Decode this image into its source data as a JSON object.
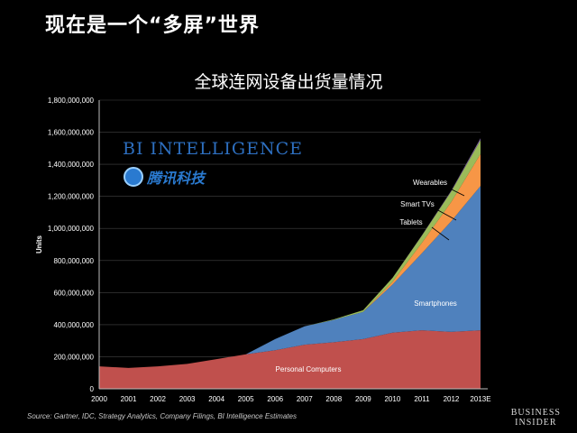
{
  "slide": {
    "title": "现在是一个“多屏”世界",
    "source": "Source: Gartner, IDC, Strategy Analytics, Company Filings, BI Intelligence Estimates",
    "publisher_line1": "BUSINESS",
    "publisher_line2": "INSIDER",
    "brand_text": "BI INTELLIGENCE",
    "logo_text": "腾讯科技"
  },
  "chart_data": {
    "type": "area",
    "stacked": true,
    "title": "全球连网设备出货量情况",
    "ylabel": "Units",
    "xlabel": "",
    "categories": [
      "2000",
      "2001",
      "2002",
      "2003",
      "2004",
      "2005",
      "2006",
      "2007",
      "2008",
      "2009",
      "2010",
      "2011",
      "2012",
      "2013E"
    ],
    "ylim": [
      0,
      1800000000
    ],
    "yticks": [
      0,
      200000000,
      400000000,
      600000000,
      800000000,
      1000000000,
      1200000000,
      1400000000,
      1600000000,
      1800000000
    ],
    "ytick_labels": [
      "0",
      "200,000,000",
      "400,000,000",
      "600,000,000",
      "800,000,000",
      "1,000,000,000",
      "1,200,000,000",
      "1,400,000,000",
      "1,600,000,000",
      "1,800,000,000"
    ],
    "series": [
      {
        "name": "Personal Computers",
        "color": "#c0504d",
        "values": [
          140000000,
          130000000,
          140000000,
          155000000,
          185000000,
          215000000,
          240000000,
          275000000,
          290000000,
          310000000,
          350000000,
          365000000,
          355000000,
          365000000
        ]
      },
      {
        "name": "Smartphones",
        "color": "#4f81bd",
        "values": [
          0,
          0,
          0,
          0,
          0,
          0,
          70000000,
          115000000,
          140000000,
          170000000,
          300000000,
          480000000,
          690000000,
          900000000
        ]
      },
      {
        "name": "Tablets",
        "color": "#f79646",
        "values": [
          0,
          0,
          0,
          0,
          0,
          0,
          0,
          0,
          0,
          0,
          17000000,
          65000000,
          120000000,
          200000000
        ]
      },
      {
        "name": "Smart TVs",
        "color": "#9bbb59",
        "values": [
          0,
          0,
          0,
          0,
          0,
          0,
          0,
          0,
          3000000,
          10000000,
          25000000,
          45000000,
          65000000,
          85000000
        ]
      },
      {
        "name": "Wearables",
        "color": "#8064a2",
        "values": [
          0,
          0,
          0,
          0,
          0,
          0,
          0,
          0,
          0,
          0,
          0,
          2000000,
          5000000,
          12000000
        ]
      }
    ],
    "annotations": [
      {
        "text": "Personal Computers",
        "series": "Personal Computers"
      },
      {
        "text": "Smartphones",
        "series": "Smartphones"
      },
      {
        "text": "Tablets",
        "series": "Tablets"
      },
      {
        "text": "Smart TVs",
        "series": "Smart TVs"
      },
      {
        "text": "Wearables",
        "series": "Wearables"
      }
    ],
    "grid": true,
    "colors": {
      "background": "#000000",
      "text": "#ffffff",
      "grid": "#444444"
    }
  }
}
